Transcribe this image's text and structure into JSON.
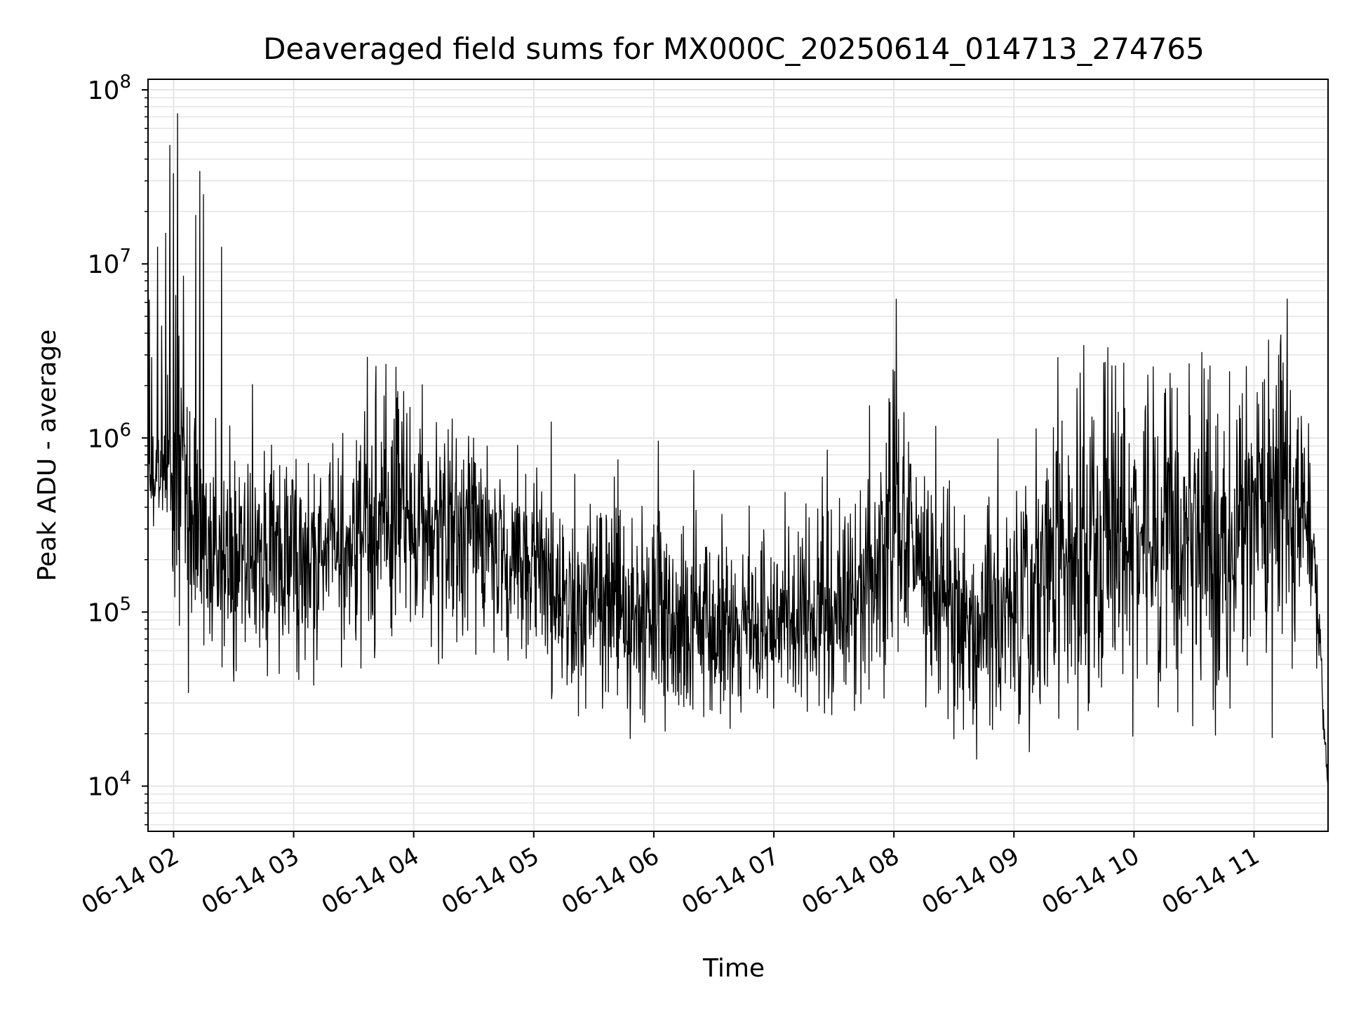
{
  "chart_data": {
    "type": "line",
    "title": "Deaveraged field sums for MX000C_20250614_014713_274765",
    "xlabel": "Time",
    "ylabel": "Peak ADU - average",
    "x_range": [
      "2025-06-14T01:47:13",
      "2025-06-14T11:37:00"
    ],
    "ylim": [
      5500,
      115000000
    ],
    "y_scale": "log",
    "grid": true,
    "grid_minor": true,
    "line_color": "#000000",
    "grid_color": "#e5e5e5",
    "x_ticks": [
      {
        "t": "2025-06-14T02:00",
        "label": "06-14 02"
      },
      {
        "t": "2025-06-14T03:00",
        "label": "06-14 03"
      },
      {
        "t": "2025-06-14T04:00",
        "label": "06-14 04"
      },
      {
        "t": "2025-06-14T05:00",
        "label": "06-14 05"
      },
      {
        "t": "2025-06-14T06:00",
        "label": "06-14 06"
      },
      {
        "t": "2025-06-14T07:00",
        "label": "06-14 07"
      },
      {
        "t": "2025-06-14T08:00",
        "label": "06-14 08"
      },
      {
        "t": "2025-06-14T09:00",
        "label": "06-14 09"
      },
      {
        "t": "2025-06-14T10:00",
        "label": "06-14 10"
      },
      {
        "t": "2025-06-14T11:00",
        "label": "06-14 11"
      }
    ],
    "y_ticks": [
      {
        "value": 10000,
        "base": "10",
        "exp": "4"
      },
      {
        "value": 100000,
        "base": "10",
        "exp": "5"
      },
      {
        "value": 1000000,
        "base": "10",
        "exp": "6"
      },
      {
        "value": 10000000,
        "base": "10",
        "exp": "7"
      },
      {
        "value": 100000000,
        "base": "10",
        "exp": "8"
      }
    ],
    "envelope": {
      "times": [
        "01:47",
        "01:55",
        "02:00",
        "02:05",
        "02:10",
        "02:15",
        "02:25",
        "02:40",
        "03:00",
        "03:20",
        "03:40",
        "03:52",
        "04:00",
        "04:20",
        "04:40",
        "05:00",
        "05:20",
        "05:40",
        "06:00",
        "06:20",
        "06:40",
        "07:00",
        "07:20",
        "07:40",
        "07:55",
        "08:00",
        "08:10",
        "08:20",
        "08:40",
        "09:00",
        "09:15",
        "09:30",
        "09:45",
        "10:00",
        "10:15",
        "10:30",
        "10:45",
        "11:00",
        "11:15",
        "11:25",
        "11:30",
        "11:33",
        "11:35",
        "11:37"
      ],
      "median": [
        550000,
        650000,
        900000,
        400000,
        250000,
        200000,
        190000,
        200000,
        210000,
        220000,
        300000,
        450000,
        300000,
        250000,
        230000,
        180000,
        120000,
        100000,
        90000,
        80000,
        75000,
        75000,
        90000,
        110000,
        200000,
        500000,
        200000,
        120000,
        90000,
        100000,
        150000,
        200000,
        220000,
        220000,
        230000,
        250000,
        250000,
        300000,
        350000,
        400000,
        200000,
        60000,
        20000,
        10000
      ],
      "spread_decades": [
        0.12,
        0.2,
        0.3,
        0.45,
        0.4,
        0.35,
        0.3,
        0.28,
        0.28,
        0.3,
        0.35,
        0.35,
        0.3,
        0.3,
        0.3,
        0.28,
        0.28,
        0.28,
        0.28,
        0.28,
        0.26,
        0.26,
        0.28,
        0.3,
        0.35,
        0.35,
        0.32,
        0.3,
        0.3,
        0.35,
        0.4,
        0.45,
        0.45,
        0.42,
        0.42,
        0.42,
        0.42,
        0.42,
        0.4,
        0.3,
        0.2,
        0.1,
        0.05,
        0.03
      ]
    },
    "spikes": [
      {
        "t": "01:48",
        "y": 6200000
      },
      {
        "t": "01:49",
        "y": 2900000
      },
      {
        "t": "01:52",
        "y": 12500000
      },
      {
        "t": "01:54",
        "y": 4400000
      },
      {
        "t": "01:56",
        "y": 15000000
      },
      {
        "t": "01:58",
        "y": 48000000
      },
      {
        "t": "02:00",
        "y": 33000000
      },
      {
        "t": "02:02",
        "y": 73000000
      },
      {
        "t": "02:05",
        "y": 8500000
      },
      {
        "t": "02:11",
        "y": 19000000
      },
      {
        "t": "02:13",
        "y": 34000000
      },
      {
        "t": "02:15",
        "y": 25000000
      },
      {
        "t": "02:24",
        "y": 12500000
      },
      {
        "t": "03:52",
        "y": 1850000
      },
      {
        "t": "03:55",
        "y": 1850000
      },
      {
        "t": "05:42",
        "y": 750000
      },
      {
        "t": "06:20",
        "y": 650000
      },
      {
        "t": "07:58",
        "y": 1600000
      },
      {
        "t": "08:05",
        "y": 1400000
      },
      {
        "t": "09:22",
        "y": 2900000
      },
      {
        "t": "09:35",
        "y": 3400000
      },
      {
        "t": "09:45",
        "y": 2700000
      },
      {
        "t": "09:49",
        "y": 2600000
      },
      {
        "t": "10:07",
        "y": 2300000
      },
      {
        "t": "10:34",
        "y": 3100000
      },
      {
        "t": "10:54",
        "y": 1800000
      }
    ],
    "dips": [
      {
        "t": "02:30",
        "y": 40000
      },
      {
        "t": "02:47",
        "y": 43000
      },
      {
        "t": "03:10",
        "y": 38000
      },
      {
        "t": "05:36",
        "y": 35000
      },
      {
        "t": "06:05",
        "y": 33000
      },
      {
        "t": "06:35",
        "y": 31000
      },
      {
        "t": "07:00",
        "y": 28000
      },
      {
        "t": "07:55",
        "y": 32000
      },
      {
        "t": "08:38",
        "y": 31000
      },
      {
        "t": "09:08",
        "y": 34000
      },
      {
        "t": "10:48",
        "y": 28000
      },
      {
        "t": "11:09",
        "y": 19000
      }
    ]
  }
}
